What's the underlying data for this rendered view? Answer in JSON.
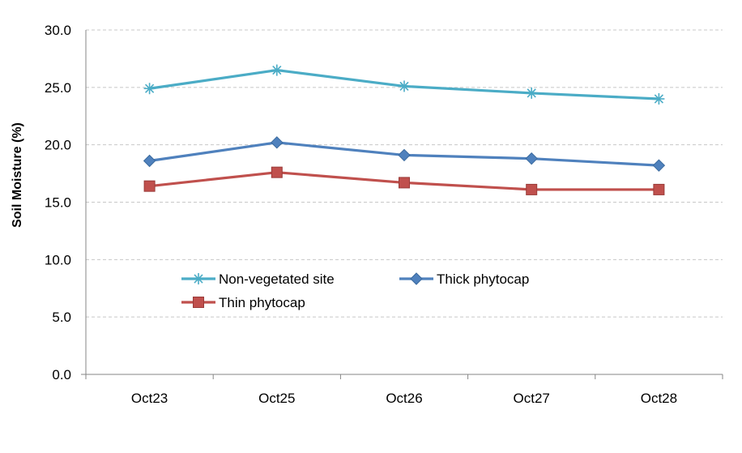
{
  "chart_data": {
    "type": "line",
    "categories": [
      "Oct23",
      "Oct25",
      "Oct26",
      "Oct27",
      "Oct28"
    ],
    "ylabel": "Soil Moisture (%)",
    "xlabel": "",
    "ylim": [
      0,
      30
    ],
    "yticks": [
      "0.0",
      "5.0",
      "10.0",
      "15.0",
      "20.0",
      "25.0",
      "30.0"
    ],
    "grid": true,
    "legend_position": "inside-lower-left",
    "series": [
      {
        "name": "Non-vegetated site",
        "values": [
          24.9,
          26.5,
          25.1,
          24.5,
          24.0
        ],
        "color": "#4BACC6",
        "marker": "star"
      },
      {
        "name": "Thick phytocap",
        "values": [
          18.6,
          20.2,
          19.1,
          18.8,
          18.2
        ],
        "color": "#4F81BD",
        "marker": "diamond"
      },
      {
        "name": "Thin phytocap",
        "values": [
          16.4,
          17.6,
          16.7,
          16.1,
          16.1
        ],
        "color": "#C0504D",
        "marker": "square"
      }
    ]
  }
}
